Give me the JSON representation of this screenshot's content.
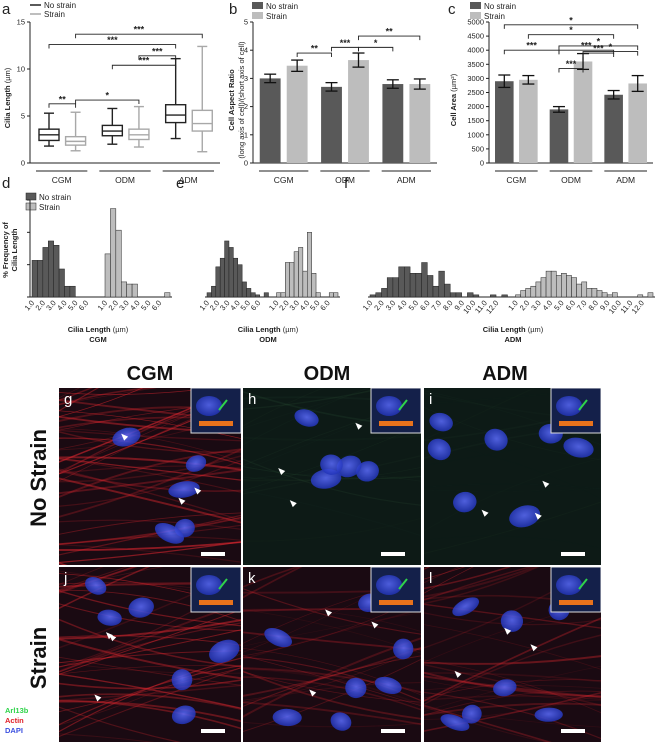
{
  "colors": {
    "no_strain": "#595959",
    "strain": "#bdbdbd",
    "box_no_strain": "#222222",
    "box_strain": "#a8a8a8",
    "scale_bar_white": "#ffffff",
    "scale_bar_orange": "#e8721c",
    "arl13b": "#2fd34a",
    "actin": "#e0202a",
    "dapi": "#3b50e0"
  },
  "chart_data": [
    {
      "panel": "a",
      "type": "box",
      "categories": [
        "CGM",
        "ODM",
        "ADM"
      ],
      "ylabel_main": "Cilia Length",
      "ylabel_unit": "(µm)",
      "ylim": [
        0,
        15
      ],
      "yticks": [
        0,
        5,
        10,
        15
      ],
      "legend": [
        "No strain",
        "Strain"
      ],
      "series": [
        {
          "name": "No strain",
          "boxes": [
            {
              "min": 1.8,
              "q1": 2.4,
              "median": 3.0,
              "q3": 3.6,
              "max": 5.3
            },
            {
              "min": 2.0,
              "q1": 2.9,
              "median": 3.4,
              "q3": 4.0,
              "max": 5.8
            },
            {
              "min": 2.6,
              "q1": 4.3,
              "median": 5.1,
              "q3": 6.2,
              "max": 11.1
            }
          ]
        },
        {
          "name": "Strain",
          "boxes": [
            {
              "min": 1.3,
              "q1": 1.9,
              "median": 2.3,
              "q3": 2.8,
              "max": 5.4
            },
            {
              "min": 1.7,
              "q1": 2.5,
              "median": 3.0,
              "q3": 3.6,
              "max": 6.0
            },
            {
              "min": 1.2,
              "q1": 3.4,
              "median": 4.2,
              "q3": 5.6,
              "max": 12.4
            }
          ]
        }
      ],
      "significance": [
        {
          "from": 0,
          "to": 1,
          "label": "**",
          "level": 6.3
        },
        {
          "from": 1,
          "to": 3,
          "label": "*",
          "level": 6.7
        },
        {
          "from": 2,
          "to": 4,
          "label": "***",
          "level": 10.4
        },
        {
          "from": 3,
          "to": 4,
          "label": "***",
          "level": 11.4
        },
        {
          "from": 0,
          "to": 4,
          "label": "***",
          "level": 12.6
        },
        {
          "from": 1,
          "to": 5,
          "label": "***",
          "level": 13.7
        }
      ]
    },
    {
      "panel": "b",
      "type": "bar",
      "categories": [
        "CGM",
        "ODM",
        "ADM"
      ],
      "ylabel_main": "Cell Aspect Ratio",
      "ylabel_sub": "(long axis of cell)/(short axis of cell)",
      "ylim": [
        0,
        5
      ],
      "yticks": [
        0,
        1,
        2,
        3,
        4,
        5
      ],
      "legend": [
        "No strain",
        "Strain"
      ],
      "series": [
        {
          "name": "No strain",
          "values": [
            3.0,
            2.7,
            2.8
          ],
          "errors": [
            0.15,
            0.15,
            0.15
          ]
        },
        {
          "name": "Strain",
          "values": [
            3.45,
            3.65,
            2.8
          ],
          "errors": [
            0.2,
            0.25,
            0.18
          ]
        }
      ],
      "significance": [
        {
          "from": 1,
          "to": 2,
          "label": "**",
          "level": 3.9
        },
        {
          "from": 2,
          "to": 3,
          "label": "***",
          "level": 4.1
        },
        {
          "from": 3,
          "to": 4,
          "label": "*",
          "level": 4.1
        },
        {
          "from": 3,
          "to": 5,
          "label": "**",
          "level": 4.5
        }
      ]
    },
    {
      "panel": "c",
      "type": "bar",
      "categories": [
        "CGM",
        "ODM",
        "ADM"
      ],
      "ylabel_main": "Cell Area",
      "ylabel_unit": "(µm²)",
      "ylim": [
        0,
        5000
      ],
      "yticks": [
        0,
        500,
        1000,
        1500,
        2000,
        2500,
        3000,
        3500,
        4000,
        4500,
        5000
      ],
      "legend": [
        "No strain",
        "Strain"
      ],
      "series": [
        {
          "name": "No strain",
          "values": [
            2900,
            1900,
            2420
          ],
          "errors": [
            220,
            100,
            150
          ]
        },
        {
          "name": "Strain",
          "values": [
            2950,
            3600,
            2820
          ],
          "errors": [
            150,
            280,
            280
          ]
        }
      ],
      "significance": [
        {
          "from": 2,
          "to": 3,
          "label": "***",
          "level": 3350
        },
        {
          "from": 3,
          "to": 4,
          "label": "***",
          "level": 3900
        },
        {
          "from": 0,
          "to": 2,
          "label": "***",
          "level": 4000
        },
        {
          "from": 2,
          "to": 4,
          "label": "***",
          "level": 4000
        },
        {
          "from": 3,
          "to": 5,
          "label": "*",
          "level": 3950
        },
        {
          "from": 1,
          "to": 4,
          "label": "*",
          "level": 4550
        },
        {
          "from": 2,
          "to": 5,
          "label": "*",
          "level": 4150
        },
        {
          "from": 0,
          "to": 5,
          "label": "*",
          "level": 4900
        }
      ]
    },
    {
      "panel": "d",
      "type": "histogram",
      "ylabel_main": "% Frequency of",
      "ylabel_sub": "Cilia Length",
      "xlabel_main": "Cilia Length",
      "xlabel_unit": "(µm)",
      "group": "CGM",
      "ylim": [
        0,
        45
      ],
      "legend": [
        "No strain",
        "Strain"
      ],
      "bin_width": 0.5,
      "series": [
        {
          "name": "No strain",
          "start": 1.5,
          "values": [
            17,
            17,
            23,
            26,
            24,
            13,
            5,
            5,
            0,
            0,
            0,
            0
          ]
        },
        {
          "name": "Strain",
          "start": 1.5,
          "values": [
            0,
            0,
            0,
            0,
            0,
            0,
            0,
            0,
            0,
            0,
            0,
            0,
            0,
            0,
            20,
            41,
            31,
            7,
            6,
            6,
            0,
            0,
            0,
            0,
            0,
            2
          ]
        }
      ],
      "xticks_no_strain": [
        "1.0",
        "2.0",
        "3.0",
        "4.0",
        "5.0",
        "6.0"
      ],
      "xticks_strain": [
        "1.0",
        "2.0",
        "3.0",
        "4.0",
        "5.0",
        "6.0"
      ]
    },
    {
      "panel": "e",
      "type": "histogram",
      "xlabel_main": "Cilia Length",
      "xlabel_unit": "(µm)",
      "group": "ODM",
      "ylim": [
        0,
        45
      ],
      "series": [
        {
          "name": "No strain",
          "values": [
            2,
            5,
            14,
            18,
            26,
            23,
            18,
            15,
            7,
            4,
            2,
            1,
            0,
            2
          ]
        },
        {
          "name": "Strain",
          "values": [
            2,
            2,
            16,
            16,
            21,
            23,
            12,
            30,
            11,
            2,
            0,
            0,
            2,
            2
          ]
        }
      ],
      "xticks_no_strain": [
        "1.0",
        "2.0",
        "3.0",
        "4.0",
        "5.0",
        "6.0"
      ],
      "xticks_strain": [
        "1.0",
        "2.0",
        "3.0",
        "4.0",
        "5.0",
        "6.0"
      ]
    },
    {
      "panel": "f",
      "type": "histogram",
      "xlabel_main": "Cilia Length",
      "xlabel_unit": "(µm)",
      "group": "ADM",
      "ylim": [
        0,
        45
      ],
      "series": [
        {
          "name": "No strain",
          "values": [
            1,
            2,
            4,
            9,
            9,
            14,
            14,
            11,
            11,
            16,
            10,
            5,
            12,
            6,
            2,
            2,
            0,
            2,
            1,
            0,
            0,
            1,
            0,
            1
          ]
        },
        {
          "name": "Strain",
          "values": [
            1,
            3,
            4,
            5,
            7,
            9,
            12,
            12,
            10,
            11,
            10,
            9,
            6,
            7,
            4,
            4,
            3,
            2,
            1,
            2,
            0,
            0,
            0,
            0,
            1,
            0,
            2
          ]
        }
      ],
      "xticks_no_strain": [
        "1.0",
        "2.0",
        "3.0",
        "4.0",
        "5.0",
        "6.0",
        "7.0",
        "8.0",
        "9.0",
        "10.0",
        "11.0",
        "12.0"
      ],
      "xticks_strain": [
        "1.0",
        "2.0",
        "3.0",
        "4.0",
        "5.0",
        "6.0",
        "7.0",
        "8.0",
        "9.0",
        "10.0",
        "11.0",
        "12.0"
      ]
    }
  ],
  "panel_labels": [
    "a",
    "b",
    "c",
    "d",
    "e",
    "f",
    "g",
    "h",
    "i",
    "j",
    "k",
    "l"
  ],
  "micrographs": {
    "column_headers": [
      "CGM",
      "ODM",
      "ADM"
    ],
    "row_headers": [
      "No Strain",
      "Strain"
    ],
    "stain_legend": [
      "Arl13b",
      "Actin",
      "DAPI"
    ]
  }
}
